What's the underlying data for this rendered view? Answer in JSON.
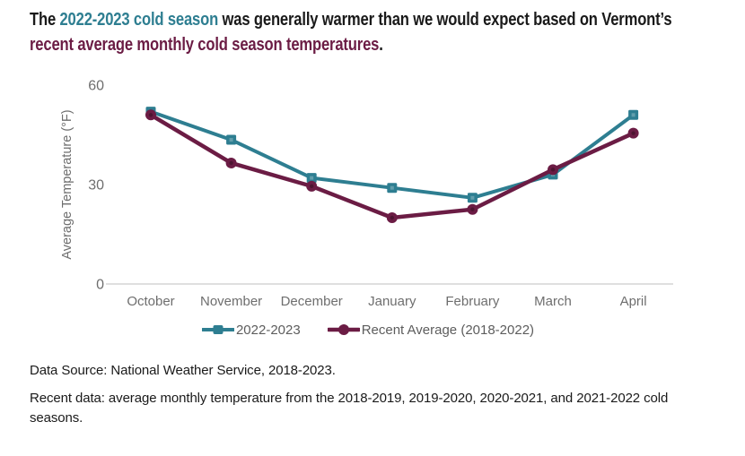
{
  "colors": {
    "teal": "#2e7e91",
    "maroon": "#6b1c44",
    "dark": "#1a1a1a",
    "axis_text": "#6e6e6e",
    "axis_line": "#cccccc",
    "legend_text": "#5d5d5d"
  },
  "title": {
    "line1": [
      {
        "text": "The ",
        "color": "dark"
      },
      {
        "text": "2022-2023 cold season",
        "color": "teal"
      },
      {
        "text": " was generally warmer than we would expect based on Vermont’s",
        "color": "dark"
      }
    ],
    "line2": [
      {
        "text": "recent average monthly cold season temperatures",
        "color": "maroon"
      },
      {
        "text": ".",
        "color": "dark"
      }
    ]
  },
  "chart_data": {
    "type": "line",
    "categories": [
      "October",
      "November",
      "December",
      "January",
      "February",
      "March",
      "April"
    ],
    "series": [
      {
        "name": "2022-2023",
        "color": "#2e7e91",
        "marker": "square",
        "values": [
          52,
          43.5,
          32,
          29,
          26,
          33,
          51
        ]
      },
      {
        "name": "Recent Average (2018-2022)",
        "color": "#6b1c44",
        "marker": "circle",
        "values": [
          51,
          36.5,
          29.5,
          20,
          22.5,
          34.5,
          45.5
        ]
      }
    ],
    "title": "",
    "xlabel": "",
    "ylabel": "Average Temperature (°F)",
    "yticks": [
      0,
      30,
      60
    ],
    "ylim": [
      0,
      60
    ],
    "grid": false,
    "legend_position": "bottom"
  },
  "footer": {
    "line1": "Data Source: National Weather Service, 2018-2023.",
    "line2": "Recent data: average monthly temperature from the 2018-2019, 2019-2020, 2020-2021, and 2021-2022 cold seasons."
  }
}
